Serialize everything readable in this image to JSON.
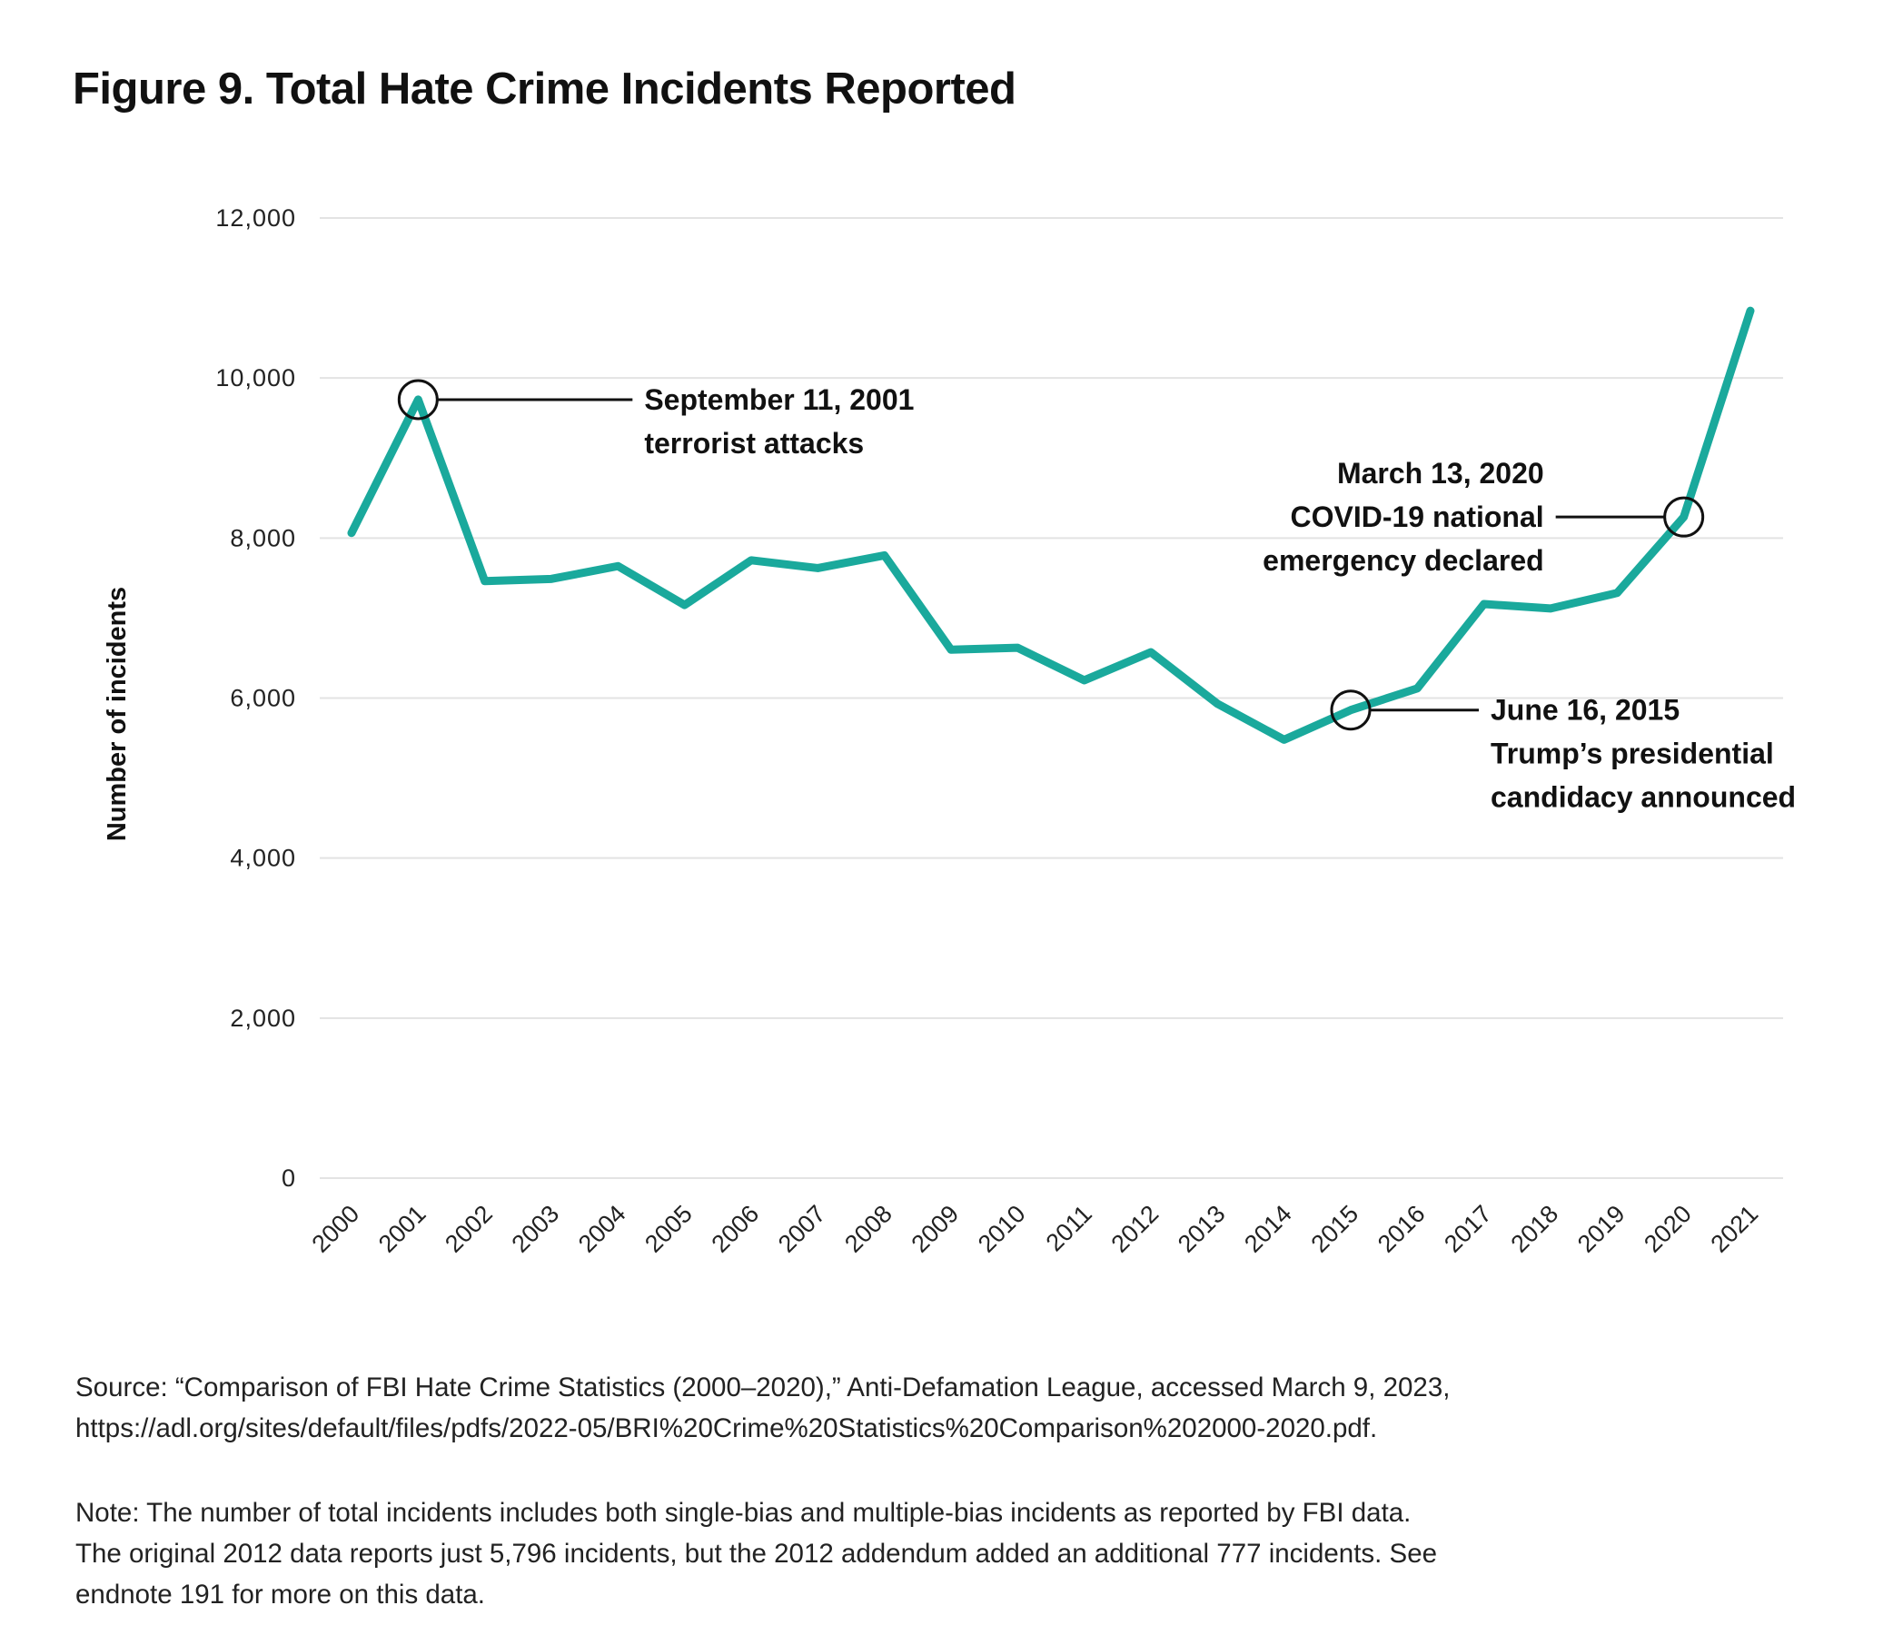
{
  "title": "Figure 9. Total Hate Crime Incidents Reported",
  "chart_data": {
    "type": "line",
    "title": "Figure 9. Total Hate Crime Incidents Reported",
    "xlabel": "",
    "ylabel": "Number of incidents",
    "ylim": [
      0,
      12000
    ],
    "yticks": [
      0,
      2000,
      4000,
      6000,
      8000,
      10000,
      12000
    ],
    "ytick_labels": [
      "0",
      "2,000",
      "4,000",
      "6,000",
      "8,000",
      "10,000",
      "12,000"
    ],
    "grid": true,
    "color": "#1aa99c",
    "categories": [
      "2000",
      "2001",
      "2002",
      "2003",
      "2004",
      "2005",
      "2006",
      "2007",
      "2008",
      "2009",
      "2010",
      "2011",
      "2012",
      "2013",
      "2014",
      "2015",
      "2016",
      "2017",
      "2018",
      "2019",
      "2020",
      "2021"
    ],
    "values": [
      8063,
      9730,
      7462,
      7489,
      7649,
      7163,
      7722,
      7624,
      7783,
      6604,
      6628,
      6222,
      6573,
      5928,
      5479,
      5850,
      6121,
      7175,
      7120,
      7314,
      8263,
      10840
    ],
    "annotations": [
      {
        "year": "2001",
        "lines": [
          "September 11, 2001",
          "terrorist attacks"
        ],
        "side": "right"
      },
      {
        "year": "2015",
        "lines": [
          "June 16, 2015",
          "Trump’s presidential",
          "candidacy announced"
        ],
        "side": "right"
      },
      {
        "year": "2020",
        "lines": [
          "March 13, 2020",
          "COVID-19 national",
          "emergency declared"
        ],
        "side": "left"
      }
    ]
  },
  "source": [
    "Source: “Comparison of FBI Hate Crime Statistics (2000–2020),” Anti-Defamation League, accessed March 9, 2023,",
    "https://adl.org/sites/default/files/pdfs/2022-05/BRI%20Crime%20Statistics%20Comparison%202000-2020.pdf."
  ],
  "note": [
    "Note: The number of total incidents includes both single-bias and multiple-bias incidents as reported by FBI data.",
    "The original 2012 data reports just 5,796 incidents, but the 2012 addendum added an additional 777 incidents. See",
    "endnote 191 for more on this data."
  ]
}
